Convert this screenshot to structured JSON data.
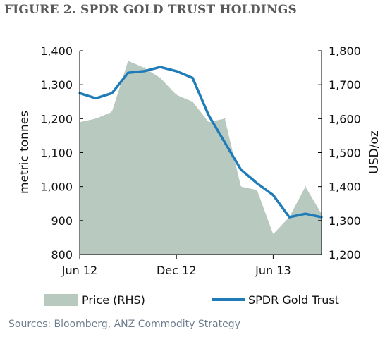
{
  "title": "FIGURE 2. SPDR GOLD TRUST HOLDINGS",
  "source": "Sources: Bloomberg, ANZ Commodity Strategy",
  "chart_data": {
    "type": "line",
    "x_tick_labels": [
      "Jun 12",
      "Dec 12",
      "Jun 13"
    ],
    "x": [
      "2012-06",
      "2012-07",
      "2012-08",
      "2012-09",
      "2012-10",
      "2012-11",
      "2012-12",
      "2013-01",
      "2013-02",
      "2013-03",
      "2013-04",
      "2013-05",
      "2013-06",
      "2013-07",
      "2013-08",
      "2013-09"
    ],
    "ylabel_left": "metric tonnes",
    "ylabel_right": "USD/oz",
    "ylim_left": [
      800,
      1400
    ],
    "yticks_left": [
      "800",
      "900",
      "1,000",
      "1,100",
      "1,200",
      "1,300",
      "1,400"
    ],
    "ylim_right": [
      1200,
      1800
    ],
    "yticks_right": [
      "1,200",
      "1,300",
      "1,400",
      "1,500",
      "1,600",
      "1,700",
      "1,800"
    ],
    "grid": false,
    "legend": "bottom",
    "series": [
      {
        "name": "Price (RHS)",
        "axis": "right",
        "style": "area",
        "color": "#b8c9bf",
        "values": [
          1590,
          1600,
          1620,
          1770,
          1750,
          1720,
          1670,
          1650,
          1590,
          1600,
          1400,
          1390,
          1260,
          1310,
          1400,
          1320
        ]
      },
      {
        "name": "SPDR Gold Trust",
        "axis": "left",
        "style": "line",
        "color": "#1f7cb8",
        "values": [
          1275,
          1260,
          1275,
          1335,
          1340,
          1352,
          1340,
          1320,
          1210,
          1130,
          1050,
          1010,
          975,
          910,
          920,
          910
        ]
      }
    ]
  }
}
